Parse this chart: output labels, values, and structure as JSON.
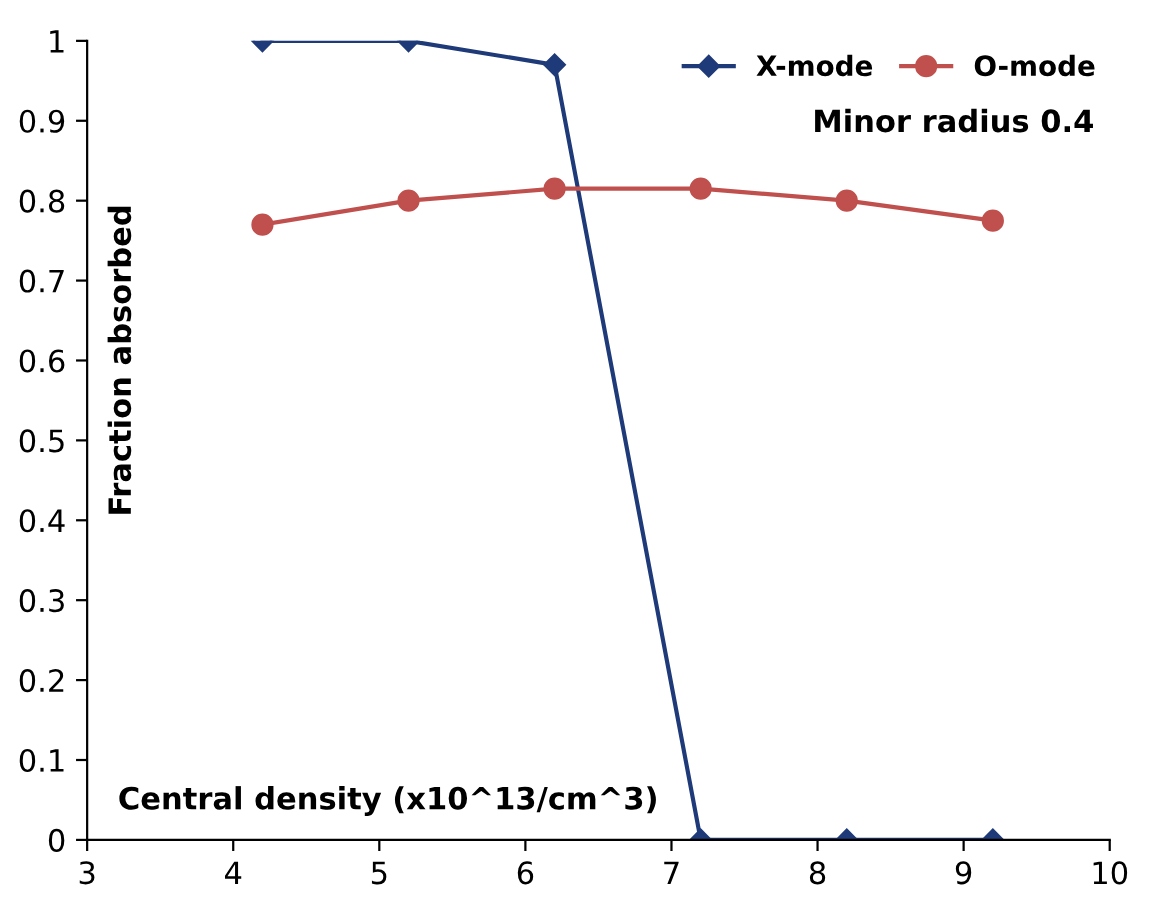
{
  "chart_data": {
    "type": "line",
    "xlabel": "Central density (x10^13/cm^3)",
    "ylabel": "Fraction absorbed",
    "annotations": [
      "Minor radius 0.4"
    ],
    "series": [
      {
        "name": "X-mode",
        "color": "#1f3a78",
        "marker": "diamond",
        "x": [
          4.2,
          5.2,
          6.2,
          7.2,
          8.2,
          9.2
        ],
        "values": [
          1,
          1,
          0.97,
          0,
          0,
          0
        ]
      },
      {
        "name": "O-mode",
        "color": "#c0504d",
        "marker": "circle",
        "x": [
          4.2,
          5.2,
          6.2,
          7.2,
          8.2,
          9.2
        ],
        "values": [
          0.77,
          0.8,
          0.815,
          0.815,
          0.8,
          0.775
        ]
      }
    ],
    "xlim": [
      3,
      10
    ],
    "xticks": [
      3,
      4,
      5,
      6,
      7,
      8,
      9,
      10
    ],
    "ylim": [
      0,
      1
    ],
    "yticks": [
      0,
      0.1,
      0.2,
      0.3,
      0.4,
      0.5,
      0.6,
      0.7,
      0.8,
      0.9,
      1
    ],
    "grid": false,
    "legend": "top right",
    "line_style": "solid"
  }
}
